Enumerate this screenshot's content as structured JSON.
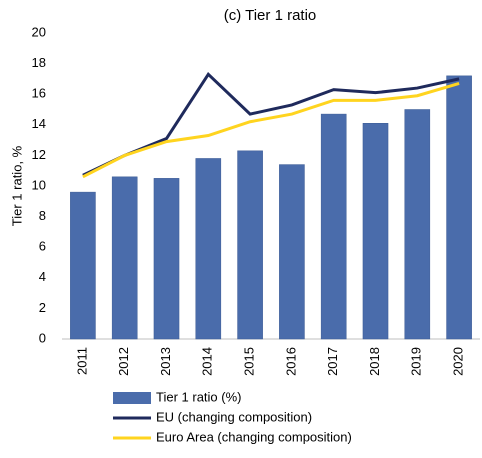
{
  "chart_data": {
    "type": "bar",
    "title": "(c) Tier 1 ratio",
    "y_label": "Tier 1 ratio, %",
    "categories": [
      "2011",
      "2012",
      "2013",
      "2014",
      "2015",
      "2016",
      "2017",
      "2018",
      "2019",
      "2020"
    ],
    "series": [
      {
        "name": "Tier 1 ratio (%)",
        "type": "bar",
        "color": "#4a6cab",
        "values": [
          9.6,
          10.6,
          10.5,
          11.8,
          12.3,
          11.4,
          14.7,
          14.1,
          15.0,
          17.2
        ]
      },
      {
        "name": "EU (changing composition)",
        "type": "line",
        "color": "#1f2a5c",
        "values": [
          10.7,
          12.0,
          13.1,
          17.3,
          14.7,
          15.3,
          16.3,
          16.1,
          16.4,
          17.0
        ]
      },
      {
        "name": "Euro Area (changing composition)",
        "type": "line",
        "color": "#ffd41f",
        "values": [
          10.6,
          12.0,
          12.9,
          13.3,
          14.2,
          14.7,
          15.6,
          15.6,
          15.9,
          16.7
        ]
      }
    ],
    "ylim": [
      0,
      20
    ],
    "yticks": [
      0,
      2,
      4,
      6,
      8,
      10,
      12,
      14,
      16,
      18,
      20
    ],
    "grid": false
  }
}
